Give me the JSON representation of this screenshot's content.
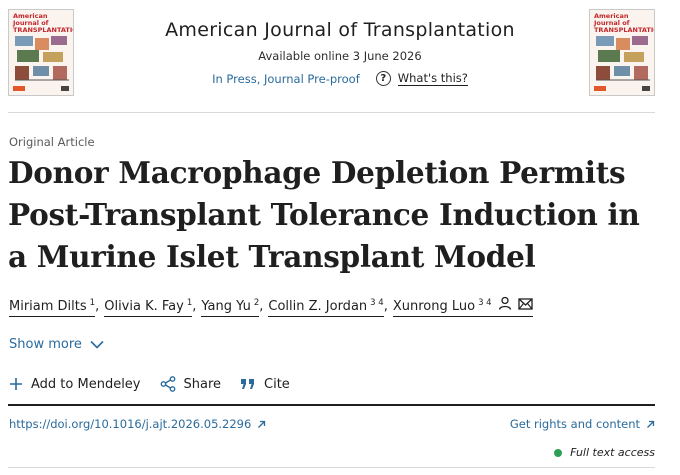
{
  "header": {
    "journal_title": "American Journal of Transplantation",
    "available": "Available online 3 June 2026",
    "in_press": "In Press, Journal Pre-proof",
    "whats_this": "What's this?"
  },
  "cover": {
    "title": "American Journal of TRANSPLANTATION"
  },
  "article": {
    "type": "Original Article",
    "title": "Donor Macrophage Depletion Permits Post-Transplant Tolerance Induction in a Murine Islet Transplant Model"
  },
  "authors": [
    {
      "name": "Miriam Dilts",
      "sup": "1"
    },
    {
      "name": "Olivia K. Fay",
      "sup": "1"
    },
    {
      "name": "Yang Yu",
      "sup": "2"
    },
    {
      "name": "Collin Z. Jordan",
      "sup": "3 4"
    },
    {
      "name": "Xunrong Luo",
      "sup": "3 4"
    }
  ],
  "show_more": "Show more",
  "actions": {
    "mendeley": "Add to Mendeley",
    "share": "Share",
    "cite": "Cite"
  },
  "doi": "https://doi.org/10.1016/j.ajt.2026.05.2296",
  "rights": "Get rights and content",
  "access": "Full text access",
  "colors": {
    "link": "#2a6b9c",
    "access_dot": "#2e9e57",
    "cover_title": "#c1272d"
  }
}
